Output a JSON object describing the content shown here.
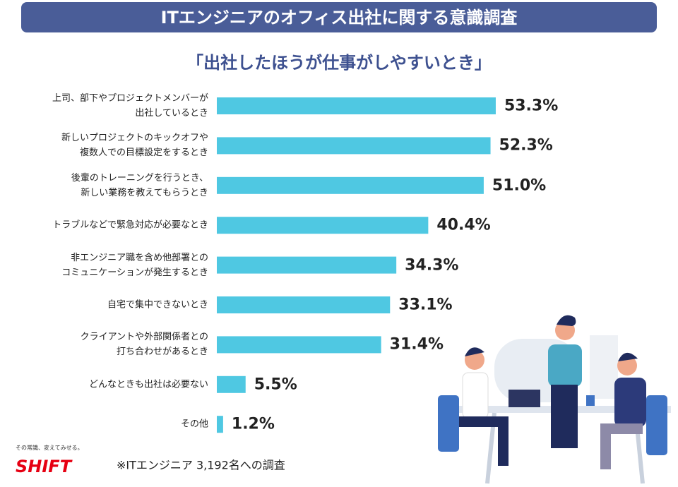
{
  "header": {
    "title": "ITエンジニアのオフィス出社に関する意識調査"
  },
  "chart_data": {
    "type": "bar",
    "orientation": "horizontal",
    "title": "「出社したほうが仕事がしやすいとき」",
    "categories": [
      "上司、部下やプロジェクトメンバーが\n出社しているとき",
      "新しいプロジェクトのキックオフや\n複数人での目標設定をするとき",
      "後輩のトレーニングを行うとき、\n新しい業務を教えてもらうとき",
      "トラブルなどで緊急対応が必要なとき",
      "非エンジニア職を含め他部署との\nコミュニケーションが発生するとき",
      "自宅で集中できないとき",
      "クライアントや外部関係者との\n打ち合わせがあるとき",
      "どんなときも出社は必要ない",
      "その他"
    ],
    "values": [
      53.3,
      52.3,
      51.0,
      40.4,
      34.3,
      33.1,
      31.4,
      5.5,
      1.2
    ],
    "value_labels": [
      "53.3%",
      "52.3%",
      "51.0%",
      "40.4%",
      "34.3%",
      "33.1%",
      "31.4%",
      "5.5%",
      "1.2%"
    ],
    "color": "#4fc8e2"
  },
  "footer": {
    "tagline": "その常識、変えてみせる。",
    "logo": "SHIFT",
    "note": "※ITエンジニア 3,192名への調査"
  }
}
